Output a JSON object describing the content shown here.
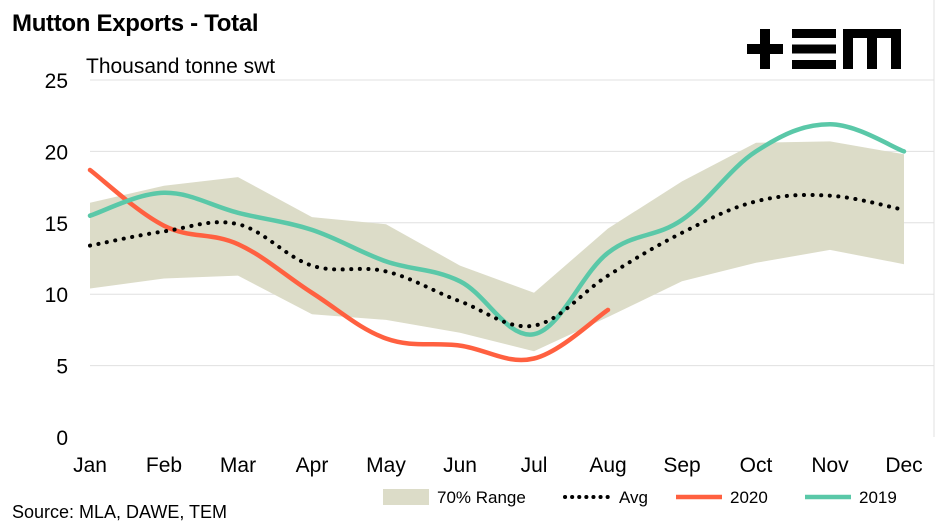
{
  "title": "Mutton Exports - Total",
  "source": "Source: MLA, DAWE, TEM",
  "logo_text": "+EM",
  "colors": {
    "range": "#dcdcc8",
    "avg": "#000000",
    "s2020": "#ff6040",
    "s2019": "#5ac8a8",
    "grid": "#e0e0e0"
  },
  "chart_data": {
    "type": "line",
    "title": "Mutton Exports - Total",
    "ylabel": "Thousand tonne swt",
    "xlabel": "",
    "ylim": [
      0,
      25
    ],
    "yticks": [
      0,
      5,
      10,
      15,
      20,
      25
    ],
    "grid": true,
    "legend_position": "bottom-right",
    "categories": [
      "Jan",
      "Feb",
      "Mar",
      "Apr",
      "May",
      "Jun",
      "Jul",
      "Aug",
      "Sep",
      "Oct",
      "Nov",
      "Dec"
    ],
    "range": {
      "name": "70% Range",
      "low": [
        10.4,
        11.1,
        11.3,
        8.6,
        8.2,
        7.3,
        6.0,
        8.4,
        10.9,
        12.2,
        13.1,
        12.1
      ],
      "high": [
        16.4,
        17.6,
        18.2,
        15.4,
        14.9,
        12.0,
        10.1,
        14.6,
        17.9,
        20.6,
        20.7,
        19.8
      ]
    },
    "series": [
      {
        "name": "Avg",
        "style": "dotted",
        "values": [
          13.4,
          14.4,
          14.9,
          12.0,
          11.6,
          9.5,
          7.8,
          11.3,
          14.3,
          16.5,
          16.9,
          15.9
        ]
      },
      {
        "name": "2020",
        "style": "solid",
        "values": [
          18.7,
          14.8,
          13.5,
          10.1,
          6.9,
          6.4,
          5.5,
          8.9,
          null,
          null,
          null,
          null
        ]
      },
      {
        "name": "2019",
        "style": "solid",
        "values": [
          15.5,
          17.1,
          15.7,
          14.5,
          12.3,
          10.9,
          7.2,
          12.9,
          15.2,
          20.0,
          21.9,
          20.0
        ]
      }
    ]
  }
}
